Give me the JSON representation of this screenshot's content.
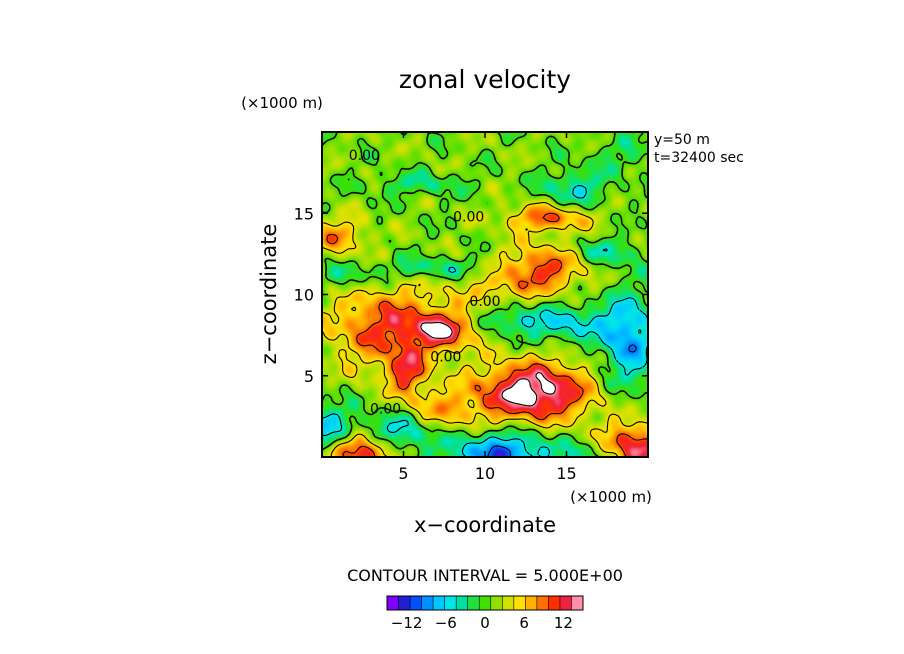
{
  "chart_data": {
    "type": "heatmap",
    "title": "zonal velocity",
    "xlabel": "x−coordinate",
    "ylabel": "z−coordinate",
    "x_unit": "(×1000 m)",
    "z_unit": "(×1000 m)",
    "xlim": [
      0,
      20
    ],
    "ylim": [
      0,
      20
    ],
    "x_ticks": [
      5,
      10,
      15
    ],
    "y_ticks": [
      5,
      10,
      15
    ],
    "x_tick_labels": [
      "5",
      "10",
      "15"
    ],
    "y_tick_labels": [
      "5",
      "10",
      "15"
    ],
    "annotations": [
      "y=50 m",
      "t=32400 sec"
    ],
    "contour_interval": "CONTOUR INTERVAL = 5.000E+00",
    "contour_labels": [
      {
        "text": "0.00",
        "x": 2.6,
        "z": 18.6
      },
      {
        "text": "0.00",
        "x": 9.0,
        "z": 14.8
      },
      {
        "text": "0.00",
        "x": 10.0,
        "z": 9.6
      },
      {
        "text": "0.00",
        "x": 7.6,
        "z": 6.2
      },
      {
        "text": "0.00",
        "x": 3.9,
        "z": 3.0
      }
    ],
    "colorbar": {
      "range": [
        -15,
        15
      ],
      "tick_values": [
        -12,
        -6,
        0,
        6,
        12
      ],
      "tick_labels": [
        "−12",
        "−6",
        "0",
        "6",
        "12"
      ],
      "colors": [
        "#8000ff",
        "#2020d0",
        "#0050ff",
        "#0090ff",
        "#00c8ff",
        "#00e6e6",
        "#00e0a0",
        "#20e040",
        "#40e000",
        "#90e000",
        "#d0e000",
        "#ffe000",
        "#ffb000",
        "#ff7000",
        "#ff3000",
        "#f02040",
        "#ff90a8"
      ]
    },
    "features": [
      {
        "x": 13.0,
        "z": 4.0,
        "sx": 2.4,
        "sz": 1.3,
        "v": 16
      },
      {
        "x": 2.5,
        "z": 0.4,
        "sx": 1.5,
        "sz": 0.9,
        "v": 14
      },
      {
        "x": 19.0,
        "z": 0.6,
        "sx": 1.6,
        "sz": 1.0,
        "v": 14
      },
      {
        "x": 11.0,
        "z": 0.2,
        "sx": 2.2,
        "sz": 1.0,
        "v": -12
      },
      {
        "x": 4.5,
        "z": 1.5,
        "sx": 1.6,
        "sz": 0.9,
        "v": -10
      },
      {
        "x": 0.4,
        "z": 1.6,
        "sx": 1.2,
        "sz": 1.2,
        "v": -8
      },
      {
        "x": 17.0,
        "z": 0.2,
        "sx": 1.4,
        "sz": 0.8,
        "v": -6
      },
      {
        "x": 4.0,
        "z": 8.0,
        "sx": 2.5,
        "sz": 1.8,
        "v": 10
      },
      {
        "x": 7.5,
        "z": 7.8,
        "sx": 1.4,
        "sz": 0.8,
        "v": 10
      },
      {
        "x": 5.2,
        "z": 5.2,
        "sx": 0.8,
        "sz": 0.9,
        "v": 9
      },
      {
        "x": 7.2,
        "z": 2.8,
        "sx": 2.0,
        "sz": 1.0,
        "v": 6
      },
      {
        "x": 13.5,
        "z": 11.6,
        "sx": 1.8,
        "sz": 1.0,
        "v": 10
      },
      {
        "x": 13.8,
        "z": 14.7,
        "sx": 1.8,
        "sz": 0.6,
        "v": 9
      },
      {
        "x": 1.0,
        "z": 13.6,
        "sx": 1.2,
        "sz": 0.8,
        "v": 7
      },
      {
        "x": 18.8,
        "z": 7.2,
        "sx": 1.2,
        "sz": 2.0,
        "v": -10
      },
      {
        "x": 15.0,
        "z": 8.2,
        "sx": 1.8,
        "sz": 0.8,
        "v": -7
      },
      {
        "x": 11.5,
        "z": 8.4,
        "sx": 1.4,
        "sz": 0.6,
        "v": -5
      },
      {
        "x": 15.5,
        "z": 16.5,
        "sx": 1.4,
        "sz": 0.8,
        "v": -6
      },
      {
        "x": 17.5,
        "z": 12.6,
        "sx": 1.5,
        "sz": 0.6,
        "v": -5
      },
      {
        "x": 6.5,
        "z": 11.6,
        "sx": 2.5,
        "sz": 0.5,
        "v": -5
      },
      {
        "x": 1.5,
        "z": 11.0,
        "sx": 1.3,
        "sz": 0.6,
        "v": -4
      },
      {
        "x": 6.0,
        "z": 16.8,
        "sx": 2.0,
        "sz": 0.5,
        "v": -4
      },
      {
        "x": 10.5,
        "z": 10.3,
        "sx": 2.0,
        "sz": 0.7,
        "v": 4
      },
      {
        "x": 18.5,
        "z": 18.6,
        "sx": 1.5,
        "sz": 0.8,
        "v": -3
      }
    ]
  }
}
